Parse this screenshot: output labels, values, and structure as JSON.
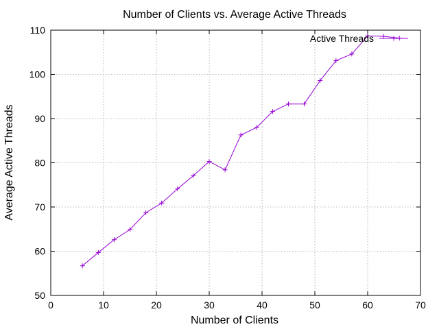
{
  "chart_data": {
    "type": "line",
    "title": "Number of Clients vs. Average Active Threads",
    "xlabel": "Number of Clients",
    "ylabel": "Average Active Threads",
    "xlim": [
      0,
      70
    ],
    "ylim": [
      50,
      110
    ],
    "xticks": [
      0,
      10,
      20,
      30,
      40,
      50,
      60,
      70
    ],
    "yticks": [
      50,
      60,
      70,
      80,
      90,
      100,
      110
    ],
    "grid": true,
    "legend_position": "top-right",
    "series": [
      {
        "name": "Active Threads",
        "color": "#9400d3",
        "marker": "plus",
        "x": [
          6,
          9,
          12,
          15,
          18,
          21,
          24,
          27,
          30,
          33,
          36,
          39,
          42,
          45,
          48,
          51,
          54,
          57,
          60,
          63,
          66
        ],
        "y": [
          56.7,
          59.7,
          62.6,
          64.9,
          68.7,
          70.9,
          74.1,
          77.1,
          80.3,
          78.4,
          86.3,
          88.0,
          91.6,
          93.3,
          93.3,
          98.6,
          103.1,
          104.6,
          108.7,
          108.6,
          108.2
        ]
      }
    ]
  }
}
